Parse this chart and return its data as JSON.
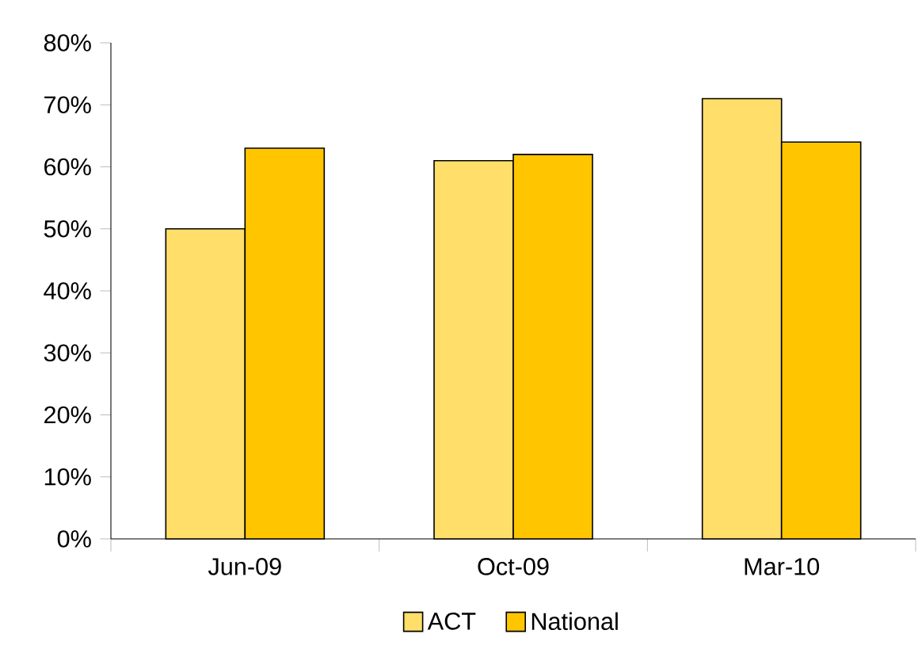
{
  "chart_data": {
    "type": "bar",
    "categories": [
      "Jun-09",
      "Oct-09",
      "Mar-10"
    ],
    "series": [
      {
        "name": "ACT",
        "color": "#ffde6a",
        "values": [
          50,
          61,
          71
        ]
      },
      {
        "name": "National",
        "color": "#ffc600",
        "values": [
          63,
          62,
          64
        ]
      }
    ],
    "ylim": [
      0,
      80
    ],
    "yticks": [
      {
        "value": 0,
        "label": "0%"
      },
      {
        "value": 10,
        "label": "10%"
      },
      {
        "value": 20,
        "label": "20%"
      },
      {
        "value": 30,
        "label": "30%"
      },
      {
        "value": 40,
        "label": "40%"
      },
      {
        "value": 50,
        "label": "50%"
      },
      {
        "value": 60,
        "label": "60%"
      },
      {
        "value": 70,
        "label": "70%"
      },
      {
        "value": 80,
        "label": "80%"
      }
    ],
    "legend": "bottom"
  }
}
